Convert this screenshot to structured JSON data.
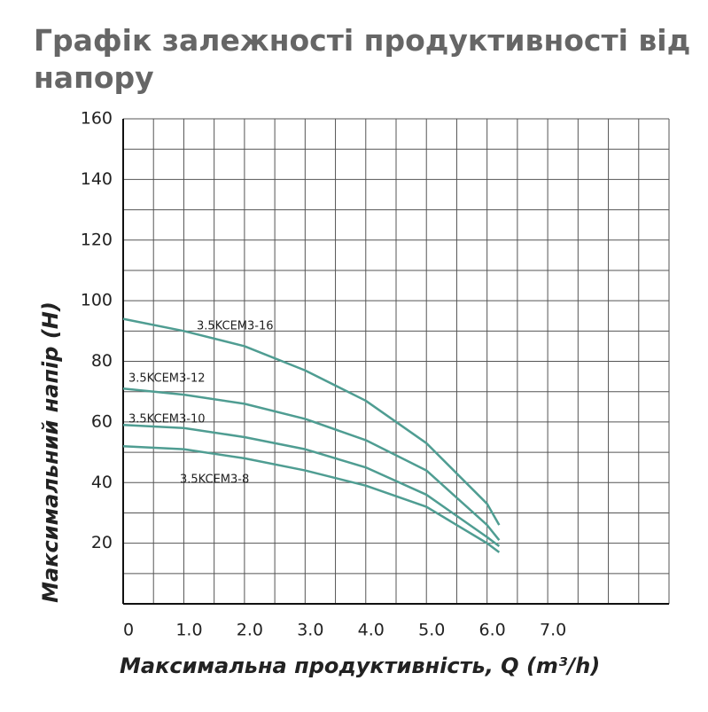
{
  "chart_data": {
    "type": "line",
    "title": "Графік залежності продуктивності від напору",
    "x_label": "Максимальна продуктивність, Q (m³/h)",
    "y_label": "Максимальний напір (Н)",
    "x": [
      0,
      1,
      2,
      3,
      4,
      5,
      6,
      6.2
    ],
    "series": [
      {
        "name": "3.5KCEM3-16",
        "color": "#4f9d92",
        "values": [
          94,
          90,
          85,
          77,
          67,
          53,
          33,
          26
        ]
      },
      {
        "name": "3.5KCEM3-12",
        "color": "#4f9d92",
        "values": [
          71,
          69,
          66,
          61,
          54,
          44,
          26,
          21
        ]
      },
      {
        "name": "3.5KCEM3-10",
        "color": "#4f9d92",
        "values": [
          59,
          58,
          55,
          51,
          45,
          36,
          22,
          19
        ]
      },
      {
        "name": "3.5KCEM3-8",
        "color": "#4f9d92",
        "values": [
          52,
          51,
          48,
          44,
          39,
          32,
          20,
          17
        ]
      }
    ],
    "xlim": [
      0,
      9
    ],
    "xticks": [
      0,
      {
        "value": 1,
        "label": "1.0"
      },
      {
        "value": 2,
        "label": "2.0"
      },
      {
        "value": 3,
        "label": "3.0"
      },
      {
        "value": 4,
        "label": "4.0"
      },
      {
        "value": 5,
        "label": "5.0"
      },
      {
        "value": 6,
        "label": "6.0"
      },
      {
        "value": 7,
        "label": "7.0"
      }
    ],
    "ylim": [
      0,
      160
    ],
    "yticks": [
      20,
      40,
      60,
      80,
      100,
      120,
      140,
      160
    ],
    "grid": true
  }
}
